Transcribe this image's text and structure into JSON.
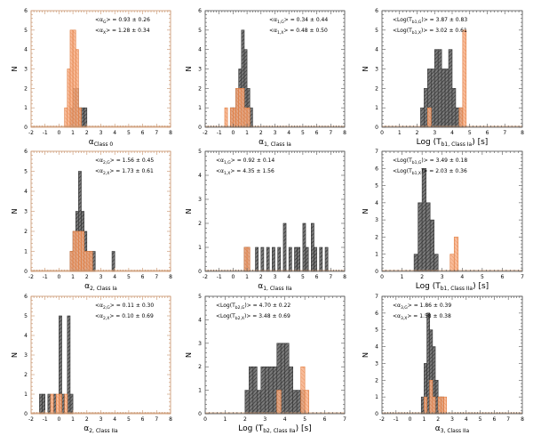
{
  "chart_data": [
    {
      "type": "bar",
      "xlabel": "α_Class 0",
      "ylabel": "N",
      "xlim": [
        -2,
        8
      ],
      "ylim": [
        0,
        6
      ],
      "grid": false,
      "annotations": [
        "<α_G> = 0.93 ± 0.26",
        "<α_X> = 1.28 ± 0.34"
      ],
      "series": [
        {
          "color": "#444444",
          "style": "gray-hatched",
          "bin_width": 0.2,
          "x": [
            0.8,
            1.0,
            1.2,
            1.4,
            1.6,
            1.8
          ],
          "values": [
            1,
            2,
            2,
            1,
            1,
            1
          ]
        },
        {
          "color": "#f5a070",
          "style": "orange-hatched",
          "bin_width": 0.2,
          "x": [
            0.4,
            0.6,
            0.8,
            1.0,
            1.2,
            1.4
          ],
          "values": [
            1,
            3,
            5,
            5,
            4,
            1
          ]
        }
      ]
    },
    {
      "type": "bar",
      "xlabel": "α_1, Class Ia",
      "ylabel": "N",
      "xlim": [
        -2,
        8
      ],
      "ylim": [
        0,
        6
      ],
      "grid": false,
      "annotations": [
        "<α_1,G> = 0.34 ± 0.44",
        "<α_1,X> = 0.48 ± 0.50"
      ],
      "series": [
        {
          "color": "#444444",
          "style": "gray-hatched",
          "bin_width": 0.2,
          "x": [
            -0.2,
            0.0,
            0.2,
            0.4,
            0.6,
            0.8,
            1.0,
            1.2
          ],
          "values": [
            1,
            1,
            2,
            3,
            5,
            4,
            2,
            1
          ]
        },
        {
          "color": "#f5a070",
          "style": "orange-hatched",
          "bin_width": 0.2,
          "x": [
            -0.6,
            -0.2,
            0.0,
            0.2,
            0.4,
            0.6,
            0.8,
            1.0
          ],
          "values": [
            1,
            1,
            1,
            2,
            2,
            2,
            1,
            1
          ]
        }
      ]
    },
    {
      "type": "bar",
      "xlabel": "Log (T_b1, Class Ia) [s]",
      "ylabel": "N",
      "xlim": [
        0,
        8
      ],
      "ylim": [
        0,
        6
      ],
      "grid": false,
      "annotations": [
        "<Log(T_b1,G)> = 3.87 ± 0.83",
        "<Log(T_b1,X)> = 3.02 ± 0.61"
      ],
      "series": [
        {
          "color": "#444444",
          "style": "gray-hatched",
          "bin_width": 0.2,
          "x": [
            2.2,
            2.4,
            2.6,
            2.8,
            3.0,
            3.2,
            3.4,
            3.6,
            3.8,
            4.0,
            4.2,
            4.4
          ],
          "values": [
            1,
            2,
            3,
            3,
            4,
            4,
            3,
            3,
            4,
            2,
            1,
            1
          ]
        },
        {
          "color": "#f5a070",
          "style": "orange-hatched",
          "bin_width": 0.2,
          "x": [
            2.6,
            4.4,
            4.6
          ],
          "values": [
            1,
            1,
            5
          ]
        }
      ]
    },
    {
      "type": "bar",
      "xlabel": "α_2, Class Ia",
      "ylabel": "N",
      "xlim": [
        -2,
        8
      ],
      "ylim": [
        0,
        6
      ],
      "grid": false,
      "annotations": [
        "<α_2,G> = 1.56 ± 0.45",
        "<α_2,X> = 1.73 ± 0.61"
      ],
      "series": [
        {
          "color": "#444444",
          "style": "gray-hatched",
          "bin_width": 0.2,
          "x": [
            0.8,
            1.0,
            1.2,
            1.4,
            1.6,
            1.8,
            2.0,
            2.2,
            2.4,
            3.8
          ],
          "values": [
            1,
            2,
            3,
            5,
            3,
            2,
            1,
            1,
            1,
            1
          ]
        },
        {
          "color": "#f5a070",
          "style": "orange-hatched",
          "bin_width": 0.2,
          "x": [
            0.8,
            1.0,
            1.2,
            1.4,
            1.6,
            1.8,
            2.0,
            2.2
          ],
          "values": [
            1,
            2,
            2,
            2,
            2,
            1,
            1,
            1
          ]
        }
      ]
    },
    {
      "type": "bar",
      "xlabel": "α_1, Class IIa",
      "ylabel": "N",
      "xlim": [
        -2,
        8
      ],
      "ylim": [
        0,
        5
      ],
      "grid": false,
      "annotations": [
        "<α_1,G> = 0.92 ± 0.14",
        "<α_1,X> = 4.35 ± 1.56"
      ],
      "series": [
        {
          "color": "#444444",
          "style": "gray-hatched",
          "bin_width": 0.2,
          "x": [
            0.8,
            1.0,
            1.6,
            2.0,
            2.4,
            2.8,
            3.2,
            3.6,
            4.0,
            4.4,
            4.6,
            5.0,
            5.2,
            5.6,
            5.8,
            6.2,
            6.6
          ],
          "values": [
            1,
            1,
            1,
            1,
            1,
            1,
            1,
            2,
            1,
            1,
            1,
            2,
            1,
            2,
            1,
            1,
            1
          ]
        },
        {
          "color": "#f5a070",
          "style": "orange-hatched",
          "bin_width": 0.2,
          "x": [
            0.8,
            1.0
          ],
          "values": [
            1,
            1
          ]
        }
      ]
    },
    {
      "type": "bar",
      "xlabel": "Log (T_b1, Class IIa) [s]",
      "ylabel": "N",
      "xlim": [
        0,
        7
      ],
      "ylim": [
        0,
        7
      ],
      "grid": false,
      "annotations": [
        "<Log(T_b1,G)> = 3.49 ± 0.18",
        "<Log(T_b1,X)> = 2.03 ± 0.36"
      ],
      "series": [
        {
          "color": "#444444",
          "style": "gray-hatched",
          "bin_width": 0.2,
          "x": [
            1.6,
            1.8,
            2.0,
            2.2,
            2.4,
            2.6
          ],
          "values": [
            1,
            4,
            6,
            4,
            3,
            1
          ]
        },
        {
          "color": "#f5a070",
          "style": "orange-hatched",
          "bin_width": 0.2,
          "x": [
            3.4,
            3.6
          ],
          "values": [
            1,
            2
          ]
        }
      ]
    },
    {
      "type": "bar",
      "xlabel": "α_2, Class IIa",
      "ylabel": "N",
      "xlim": [
        -2,
        8
      ],
      "ylim": [
        0,
        6
      ],
      "grid": false,
      "annotations": [
        "<α_2,G> = 0.11 ± 0.30",
        "<α_2,X> = 0.10 ± 0.69"
      ],
      "series": [
        {
          "color": "#444444",
          "style": "gray-hatched",
          "bin_width": 0.2,
          "x": [
            -1.4,
            -1.2,
            -0.8,
            -0.4,
            0.0,
            0.2,
            0.6,
            0.8
          ],
          "values": [
            1,
            1,
            1,
            1,
            5,
            1,
            5,
            1
          ]
        },
        {
          "color": "#f5a070",
          "style": "orange-hatched",
          "bin_width": 0.2,
          "x": [
            -0.6,
            -0.2,
            0.0,
            0.4
          ],
          "values": [
            1,
            1,
            1,
            1
          ]
        }
      ]
    },
    {
      "type": "bar",
      "xlabel": "Log (T_b2, Class IIa) [s]",
      "ylabel": "N",
      "xlim": [
        0,
        7
      ],
      "ylim": [
        0,
        5
      ],
      "grid": false,
      "annotations": [
        "<Log(T_b2,G)> = 4.70 ± 0.22",
        "<Log(T_b2,X)> = 3.48 ± 0.69"
      ],
      "series": [
        {
          "color": "#444444",
          "style": "gray-hatched",
          "bin_width": 0.2,
          "x": [
            2.0,
            2.2,
            2.4,
            2.6,
            2.8,
            3.0,
            3.2,
            3.4,
            3.6,
            3.8,
            4.0,
            4.2,
            4.4,
            4.6,
            4.8
          ],
          "values": [
            1,
            2,
            2,
            1,
            2,
            2,
            2,
            2,
            3,
            3,
            3,
            2,
            1,
            1,
            1
          ]
        },
        {
          "color": "#f5a070",
          "style": "orange-hatched",
          "bin_width": 0.2,
          "x": [
            3.6,
            4.8,
            5.0
          ],
          "values": [
            1,
            2,
            1
          ]
        }
      ]
    },
    {
      "type": "bar",
      "xlabel": "α_3, Class IIa",
      "ylabel": "N",
      "xlim": [
        -2,
        8
      ],
      "ylim": [
        0,
        7
      ],
      "grid": false,
      "annotations": [
        "<α_3,G> = 1.86 ± 0.39",
        "<α_3,X> = 1.58 ± 0.38"
      ],
      "series": [
        {
          "color": "#444444",
          "style": "gray-hatched",
          "bin_width": 0.2,
          "x": [
            0.8,
            1.0,
            1.2,
            1.4,
            1.6,
            1.8,
            2.0,
            2.2
          ],
          "values": [
            1,
            3,
            6,
            5,
            4,
            2,
            1,
            1
          ]
        },
        {
          "color": "#f5a070",
          "style": "orange-hatched",
          "bin_width": 0.2,
          "x": [
            1.0,
            1.4,
            1.6,
            2.0,
            2.2,
            2.4
          ],
          "values": [
            1,
            2,
            1,
            1,
            1,
            1
          ]
        }
      ]
    }
  ]
}
